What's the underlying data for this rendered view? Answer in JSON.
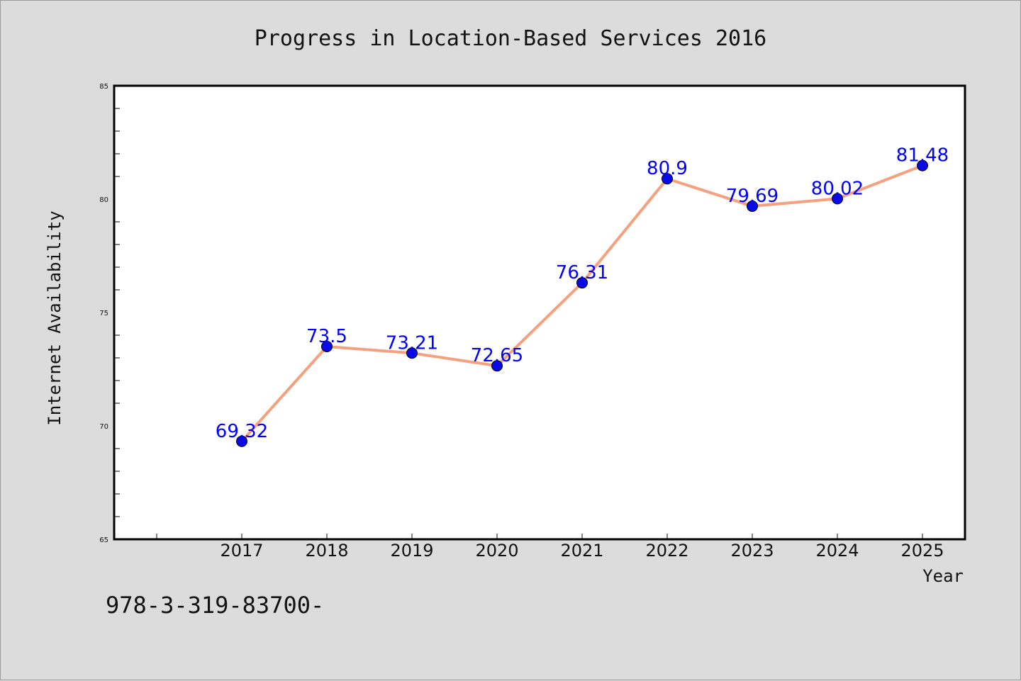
{
  "colors": {
    "background": "#dcdcdc",
    "plot_background": "#ffffff",
    "line": "#f5a07e",
    "marker": "#0a0ae6",
    "label": "#0000ff"
  },
  "footnote": "978-3-319-83700-",
  "chart_data": {
    "type": "line",
    "title": "Progress in Location-Based Services 2016",
    "xlabel": "Year",
    "ylabel": "Internet Availability",
    "categories": [
      "2017",
      "2018",
      "2019",
      "2020",
      "2021",
      "2022",
      "2023",
      "2024",
      "2025"
    ],
    "series": [
      {
        "values": [
          69.32,
          73.5,
          73.21,
          72.65,
          76.31,
          80.9,
          79.69,
          80.02,
          81.48
        ],
        "labels": [
          "69.32",
          "73.5",
          "73.21",
          "72.65",
          "76.31",
          "80.9",
          "79.69",
          "80.02",
          "81.48"
        ]
      }
    ],
    "ylim": [
      65,
      85
    ],
    "yticks": [
      65,
      70,
      75,
      80,
      85
    ],
    "ytick_labels": [
      "65",
      "70",
      "75",
      "80",
      "85"
    ],
    "x_first_tick_unlabeled": true,
    "grid": false,
    "legend": "none"
  }
}
